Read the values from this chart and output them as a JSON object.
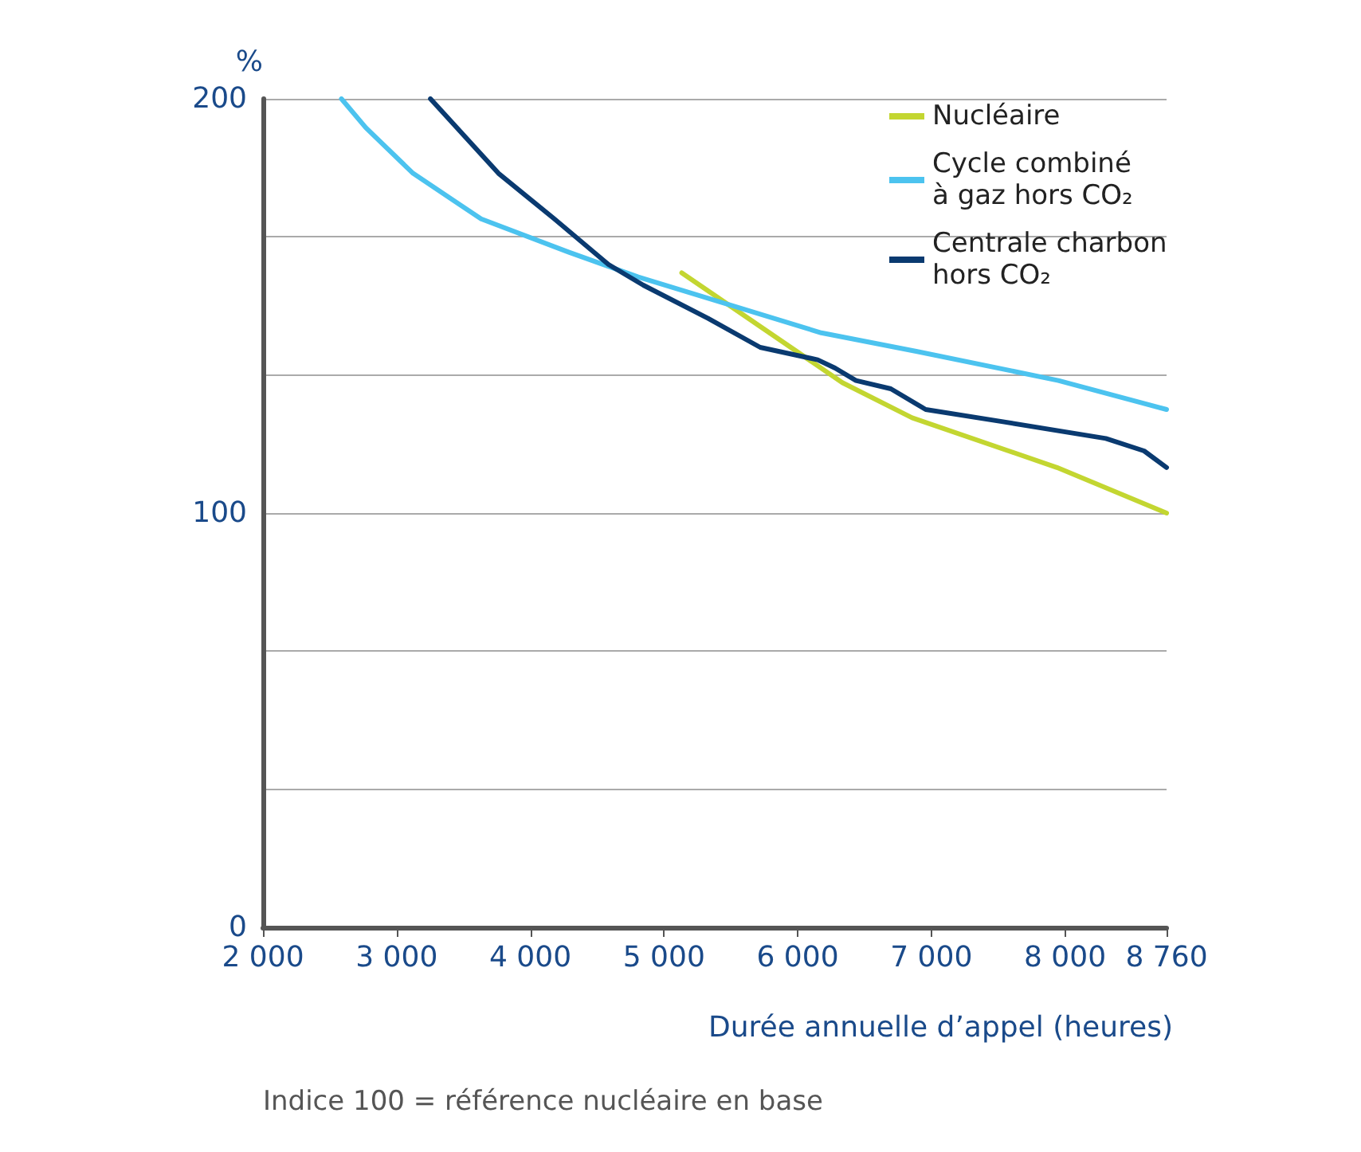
{
  "chart_data": {
    "type": "line",
    "ylabel": "%",
    "xlabel": "Durée annuelle d’appel (heures)",
    "annotations": [
      "Indice 100 = référence nucléaire en base"
    ],
    "xlim": [
      2000,
      8760
    ],
    "xticks": [
      {
        "value": 2000,
        "label": "2 000"
      },
      {
        "value": 3000,
        "label": "3 000"
      },
      {
        "value": 4000,
        "label": "4 000"
      },
      {
        "value": 5000,
        "label": "5 000"
      },
      {
        "value": 6000,
        "label": "6 000"
      },
      {
        "value": 7000,
        "label": "7 000"
      },
      {
        "value": 8000,
        "label": "8 000"
      },
      {
        "value": 8760,
        "label": "8 760"
      }
    ],
    "ylim": [
      0,
      200
    ],
    "yticks": [
      0,
      {
        "value": 33.3,
        "label": null
      },
      {
        "value": 66.7,
        "label": null
      },
      100,
      {
        "value": 133.3,
        "label": null
      },
      {
        "value": 166.7,
        "label": null
      },
      200
    ],
    "grid": "y",
    "legend": "top right",
    "marker": "none",
    "line_style": "solid",
    "series": [
      {
        "name": "Nucléaire",
        "color": "#c3d631",
        "x": [
          5133,
          6334,
          6856,
          7940,
          8760
        ],
        "values": [
          158,
          131.5,
          123,
          111,
          100
        ]
      },
      {
        "name": "Cycle combiné\nà gaz hors CO₂",
        "color": "#4cc3ef",
        "x": [
          2587,
          2770,
          3123,
          3632,
          4285,
          4807,
          6177,
          6895,
          7950,
          8760
        ],
        "values": [
          200,
          193,
          182,
          171,
          163,
          157,
          143.5,
          139,
          132,
          125
        ]
      },
      {
        "name": "Centrale charbon\nhors CO₂",
        "color": "#0a3a70",
        "x": [
          3253,
          3762,
          4180,
          4585,
          4846,
          5330,
          5720,
          6150,
          6280,
          6436,
          6697,
          6958,
          7546,
          8306,
          8592,
          8760
        ],
        "values": [
          200,
          182,
          171,
          160,
          155,
          147,
          140,
          137,
          135,
          132,
          130,
          125,
          122,
          118,
          115,
          111
        ]
      }
    ]
  }
}
